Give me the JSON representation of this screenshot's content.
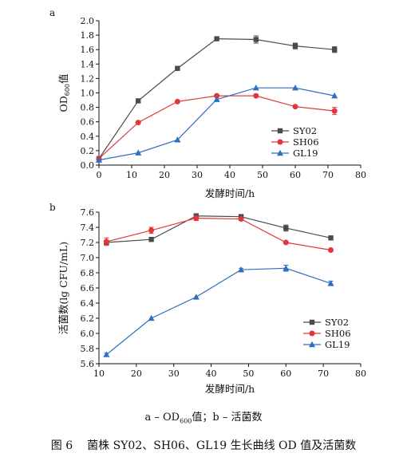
{
  "chart_data": [
    {
      "type": "line",
      "panel_label": "a",
      "xlabel": "发酵时间/h",
      "ylabel": "OD",
      "ylabel_sub": "600",
      "ylabel_suffix": "值",
      "xlim": [
        0,
        80
      ],
      "ylim": [
        0.0,
        2.0
      ],
      "xticks": [
        0,
        10,
        20,
        30,
        40,
        50,
        60,
        70,
        80
      ],
      "yticks": [
        0.0,
        0.2,
        0.4,
        0.6,
        0.8,
        1.0,
        1.2,
        1.4,
        1.6,
        1.8,
        2.0
      ],
      "ytick_decimals": 1,
      "grid": false,
      "legend_position": "right-middle",
      "series": [
        {
          "name": "SY02",
          "marker": "square",
          "color": "#4a4a4a",
          "x": [
            0,
            12,
            24,
            36,
            48,
            60,
            72
          ],
          "y": [
            0.09,
            0.89,
            1.34,
            1.75,
            1.74,
            1.65,
            1.6
          ],
          "err": [
            0,
            0,
            0,
            0,
            0.05,
            0.04,
            0.04
          ]
        },
        {
          "name": "SH06",
          "marker": "circle",
          "color": "#e0383a",
          "x": [
            0,
            12,
            24,
            36,
            48,
            60,
            72
          ],
          "y": [
            0.09,
            0.59,
            0.88,
            0.96,
            0.96,
            0.81,
            0.75
          ],
          "err": [
            0,
            0,
            0,
            0,
            0,
            0,
            0.05
          ]
        },
        {
          "name": "GL19",
          "marker": "triangle",
          "color": "#2e6fc0",
          "x": [
            0,
            12,
            24,
            36,
            48,
            60,
            72
          ],
          "y": [
            0.07,
            0.17,
            0.35,
            0.91,
            1.07,
            1.07,
            0.96
          ],
          "err": [
            0,
            0,
            0,
            0,
            0,
            0,
            0
          ]
        }
      ]
    },
    {
      "type": "line",
      "panel_label": "b",
      "xlabel": "发酵时间/h",
      "ylabel": "活菌数(lg CFU/mL)",
      "xlim": [
        10,
        80
      ],
      "ylim": [
        5.6,
        7.6
      ],
      "xticks": [
        10,
        20,
        30,
        40,
        50,
        60,
        70,
        80
      ],
      "yticks": [
        5.6,
        5.8,
        6.0,
        6.2,
        6.4,
        6.6,
        6.8,
        7.0,
        7.2,
        7.4,
        7.6
      ],
      "ytick_decimals": 1,
      "grid": false,
      "legend_position": "bottom-right",
      "series": [
        {
          "name": "SY02",
          "marker": "square",
          "color": "#4a4a4a",
          "x": [
            12,
            24,
            36,
            48,
            60,
            72
          ],
          "y": [
            7.2,
            7.24,
            7.55,
            7.54,
            7.39,
            7.26
          ],
          "err": [
            0,
            0,
            0.03,
            0.03,
            0.04,
            0.02
          ]
        },
        {
          "name": "SH06",
          "marker": "circle",
          "color": "#e0383a",
          "x": [
            12,
            24,
            36,
            48,
            60,
            72
          ],
          "y": [
            7.21,
            7.36,
            7.52,
            7.51,
            7.2,
            7.1
          ],
          "err": [
            0.05,
            0.04,
            0.03,
            0.02,
            0,
            0
          ]
        },
        {
          "name": "GL19",
          "marker": "triangle",
          "color": "#2e6fc0",
          "x": [
            12,
            24,
            36,
            48,
            60,
            72
          ],
          "y": [
            5.72,
            6.2,
            6.48,
            6.84,
            6.86,
            6.66
          ],
          "err": [
            0.02,
            0,
            0,
            0.02,
            0.04,
            0.03
          ]
        }
      ]
    }
  ],
  "captions": {
    "sub_a_prefix": "a – OD",
    "sub_a_sub": "600",
    "sub_a_suffix": "值；b – 活菌数",
    "figure_number": "图 6",
    "figure_title": "菌株 SY02、SH06、GL19 生长曲线 OD 值及活菌数"
  }
}
